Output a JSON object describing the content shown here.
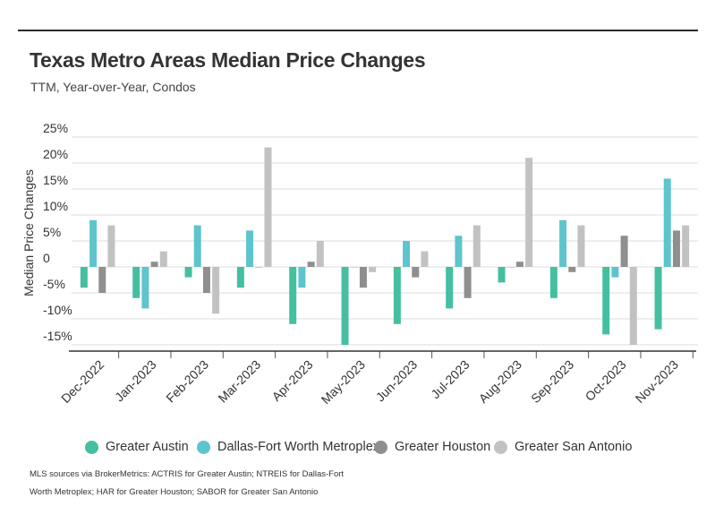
{
  "header": {
    "title": "Texas Metro Areas Median Price Changes",
    "subtitle": "TTM, Year-over-Year, Condos"
  },
  "footnote": {
    "line1": "MLS sources via BrokerMetrics: ACTRIS for Greater Austin; NTREIS for Dallas-Fort",
    "line2": "Worth Metroplex; HAR for Greater Houston; SABOR for Greater San Antonio"
  },
  "chart_data": {
    "type": "bar",
    "ylabel": "Median Price Changes",
    "xlabel": "",
    "ylim": [
      -15,
      25
    ],
    "yticks": [
      25,
      20,
      15,
      10,
      5,
      0,
      -5,
      -10,
      -15
    ],
    "ytick_labels": [
      "25%",
      "20%",
      "15%",
      "10%",
      "5%",
      "0",
      "-5%",
      "-10%",
      "-15%"
    ],
    "grid": true,
    "legend_position": "bottom",
    "categories": [
      "Dec-2022",
      "Jan-2023",
      "Feb-2023",
      "Mar-2023",
      "Apr-2023",
      "May-2023",
      "Jun-2023",
      "Jul-2023",
      "Aug-2023",
      "Sep-2023",
      "Oct-2023",
      "Nov-2023"
    ],
    "series": [
      {
        "name": "Greater Austin",
        "color": "#45bfa0",
        "values": [
          -4,
          -6,
          -2,
          -4,
          -11,
          -15,
          -11,
          -8,
          -3,
          -6,
          -13,
          -12
        ]
      },
      {
        "name": "Dallas-Fort Worth Metroplex",
        "color": "#5ec4cd",
        "values": [
          9,
          -8,
          8,
          7,
          -4,
          0,
          5,
          6,
          0,
          9,
          -2,
          17
        ]
      },
      {
        "name": "Greater Houston",
        "color": "#8f8f8f",
        "values": [
          -5,
          1,
          -5,
          0,
          1,
          -4,
          -2,
          -6,
          1,
          -1,
          6,
          7
        ]
      },
      {
        "name": "Greater San Antonio",
        "color": "#c2c2c2",
        "values": [
          8,
          3,
          -9,
          23,
          5,
          -1,
          3,
          8,
          21,
          8,
          -15,
          8
        ]
      }
    ]
  }
}
